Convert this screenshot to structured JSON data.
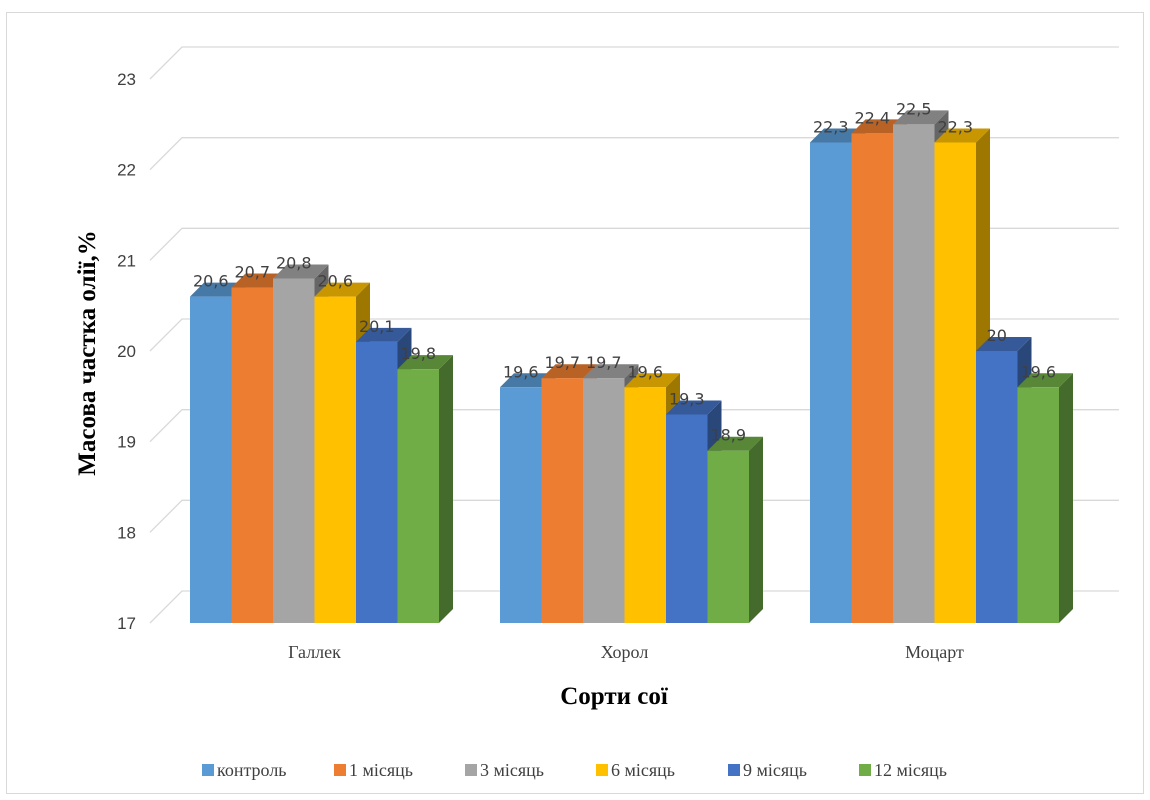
{
  "chart_data": {
    "type": "bar",
    "categories": [
      "Галлек",
      "Хорол",
      "Моцарт"
    ],
    "series": [
      {
        "name": "контроль",
        "values": [
          20.6,
          19.6,
          22.3
        ],
        "color": "#5B9BD5",
        "labels": [
          "20,6",
          "19,6",
          "22,3"
        ]
      },
      {
        "name": "1 місяць",
        "values": [
          20.7,
          19.7,
          22.4
        ],
        "color": "#ED7D31",
        "labels": [
          "20,7",
          "19,7",
          "22,4"
        ]
      },
      {
        "name": "3 місяць",
        "values": [
          20.8,
          19.7,
          22.5
        ],
        "color": "#A5A5A5",
        "labels": [
          "20,8",
          "19,7",
          "22,5"
        ]
      },
      {
        "name": "6 місяць",
        "values": [
          20.6,
          19.6,
          22.3
        ],
        "color": "#FFC000",
        "labels": [
          "20,6",
          "19,6",
          "22,3"
        ]
      },
      {
        "name": "9 місяць",
        "values": [
          20.1,
          19.3,
          20
        ],
        "color": "#4472C4",
        "labels": [
          "20,1",
          "19,3",
          "20"
        ]
      },
      {
        "name": "12 місяць",
        "values": [
          19.8,
          18.9,
          19.6
        ],
        "color": "#70AD47",
        "labels": [
          "19,8",
          "18,9",
          "19,6"
        ]
      }
    ],
    "xlabel": "Сорти сої",
    "ylabel": "Масова частка олії,%",
    "ylim": [
      17,
      23
    ],
    "yticks": [
      "17",
      "18",
      "19",
      "20",
      "21",
      "22",
      "23"
    ],
    "grid": true,
    "style": "3d-clustered-column",
    "legend_position": "bottom"
  }
}
